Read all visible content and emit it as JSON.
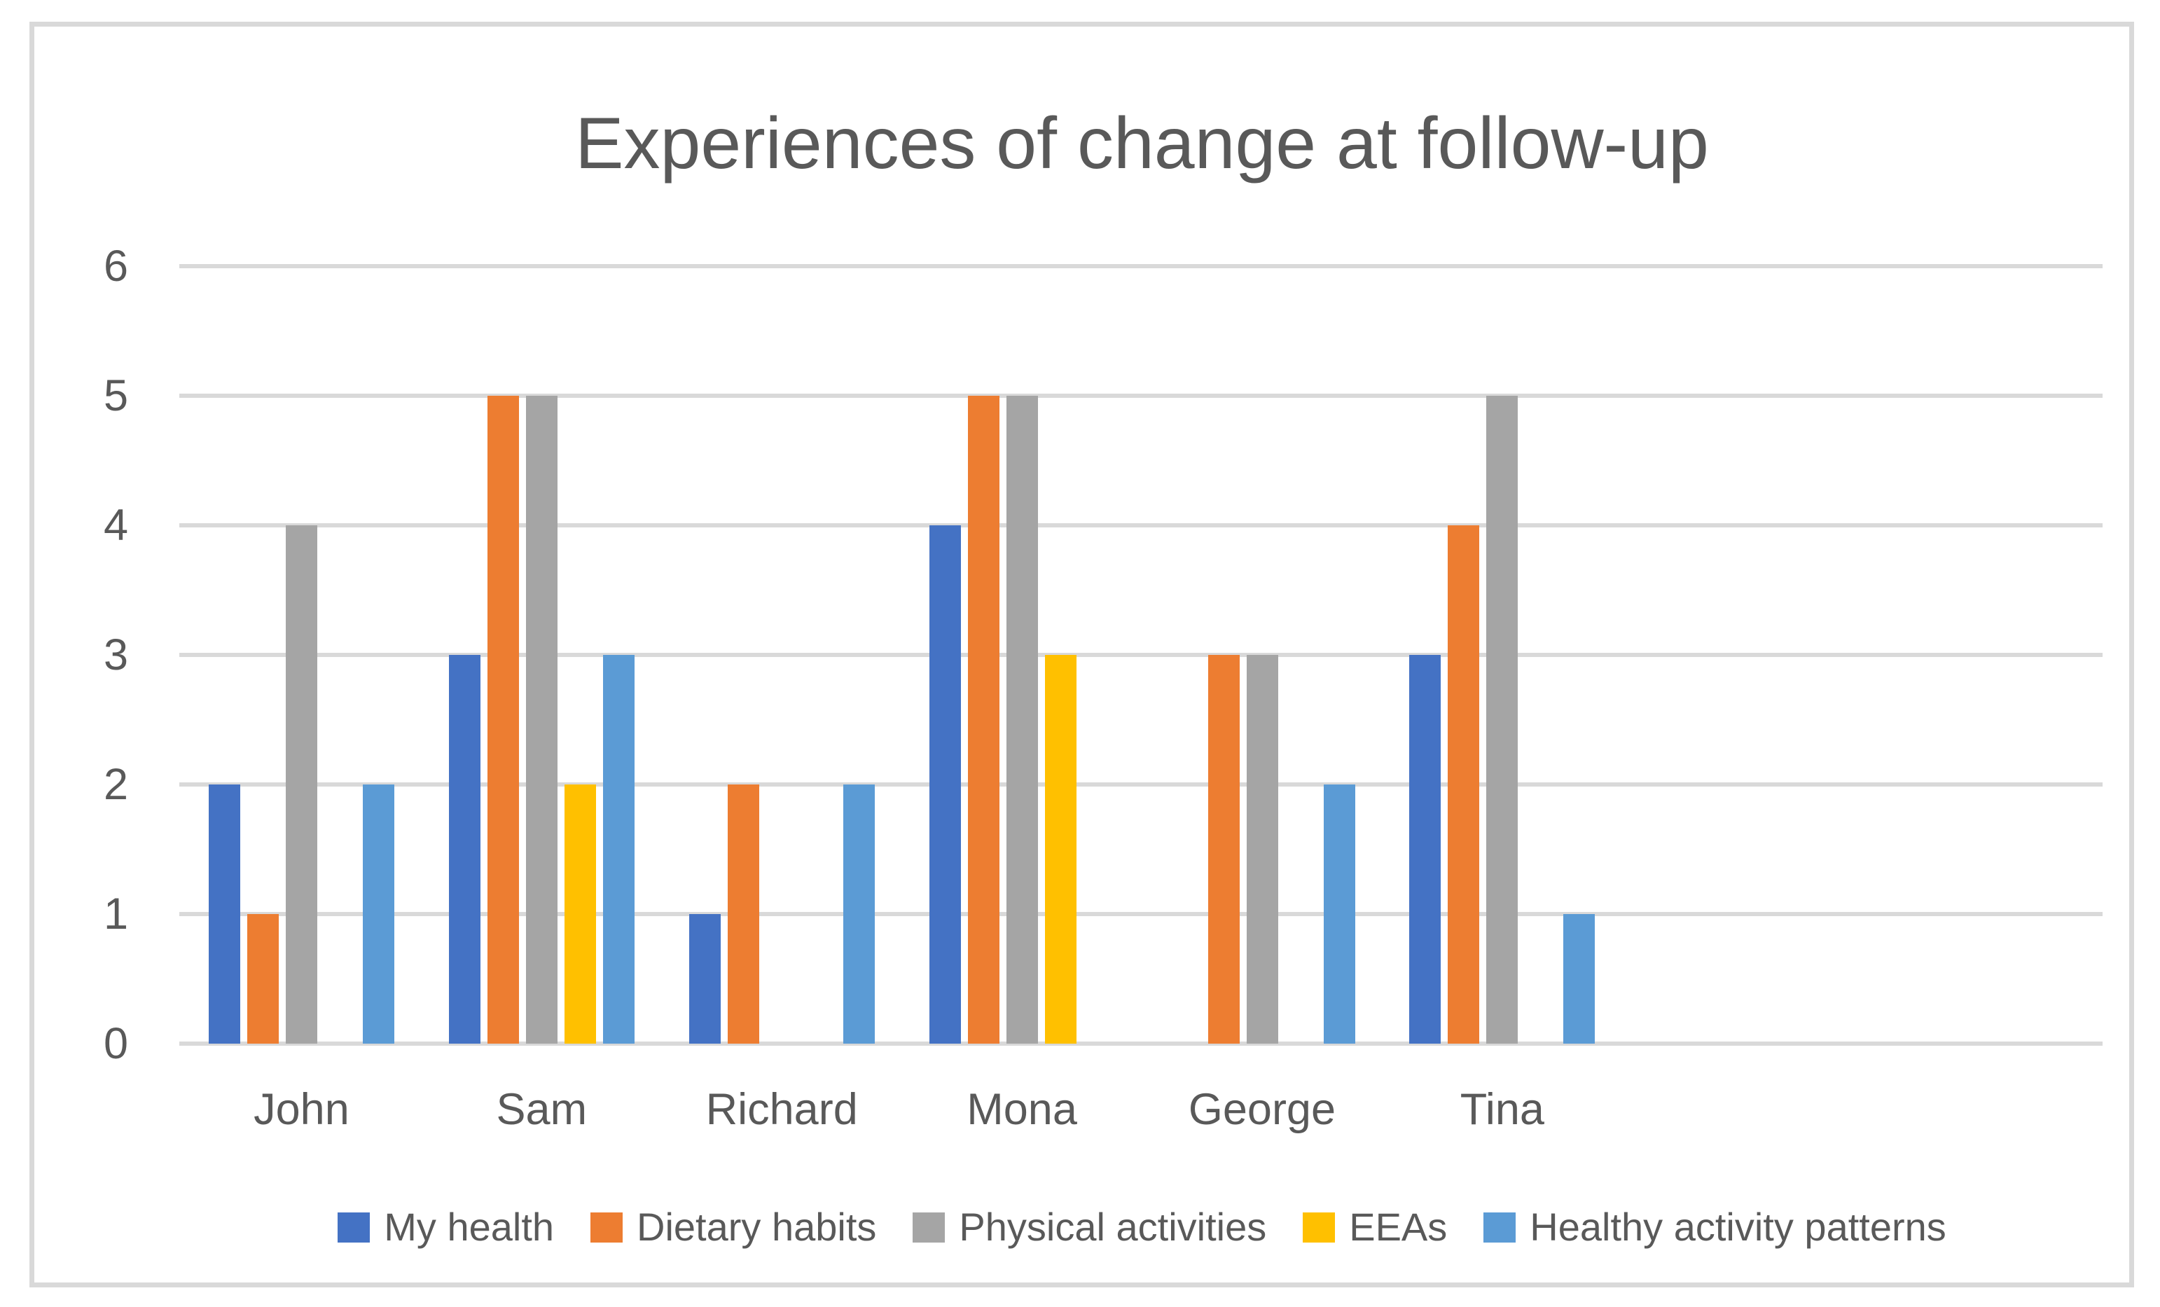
{
  "title": "Experiences of change at follow-up",
  "palette": {
    "text": "#595959",
    "gridline": "#D9D9D9",
    "axis_line": "#D9D9D9",
    "frame_border": "#D9D9D9",
    "background": "#FFFFFF"
  },
  "chart_data": {
    "type": "bar",
    "title": "Experiences of change at follow-up",
    "categories": [
      "John",
      "Sam",
      "Richard",
      "Mona",
      "George",
      "Tina"
    ],
    "series": [
      {
        "name": "My health",
        "color": "#4472C4",
        "values": [
          2,
          3,
          1,
          4,
          0,
          3
        ]
      },
      {
        "name": "Dietary habits",
        "color": "#ED7D31",
        "values": [
          1,
          5,
          2,
          5,
          3,
          4
        ]
      },
      {
        "name": "Physical activities",
        "color": "#A5A5A5",
        "values": [
          4,
          5,
          0,
          5,
          3,
          5
        ]
      },
      {
        "name": "EEAs",
        "color": "#FFC000",
        "values": [
          0,
          2,
          0,
          3,
          0,
          0
        ]
      },
      {
        "name": "Healthy activity patterns",
        "color": "#5B9BD5",
        "values": [
          2,
          3,
          2,
          0,
          2,
          1
        ]
      }
    ],
    "xlabel": "",
    "ylabel": "",
    "ylim": [
      0,
      6
    ],
    "yticks": [
      0,
      1,
      2,
      3,
      4,
      5,
      6
    ],
    "grid": true,
    "legend_position": "bottom",
    "category_slots_total": 8
  }
}
